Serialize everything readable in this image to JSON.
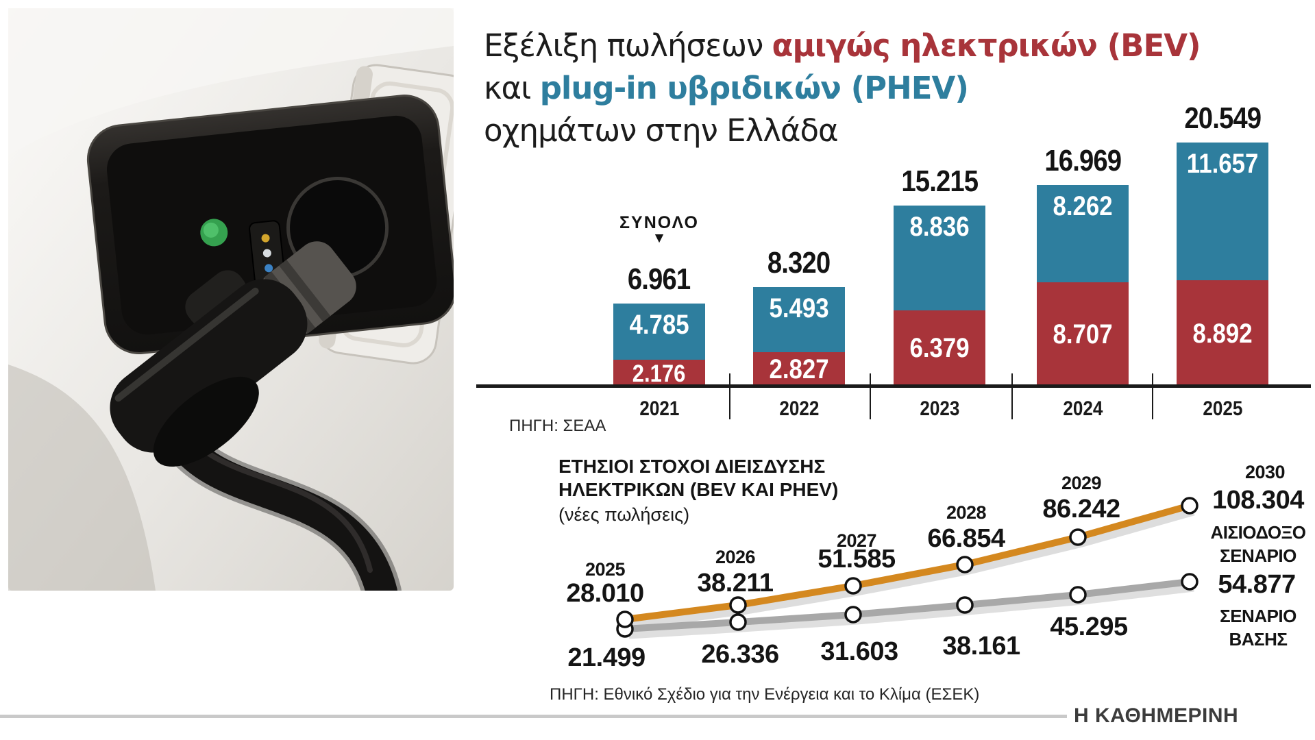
{
  "title": {
    "part1": "Εξέλιξη πωλήσεων ",
    "bev": "αμιγώς ηλεκτρικών (BEV)",
    "part2": "και ",
    "phev": "plug-in υβριδικών (PHEV)",
    "part3": "οχημάτων στην Ελλάδα"
  },
  "colors": {
    "bev": "#a8343a",
    "phev": "#2e7e9e",
    "optimistic": "#d4881f",
    "base": "#a8a8a8",
    "axis": "#1a1a1a",
    "led": "#3fae5a"
  },
  "footer": {
    "brand": "Η ΚΑΘΗΜΕΡΙΝΗ"
  },
  "chart_data": [
    {
      "type": "bar",
      "stacked": true,
      "title": "Εξέλιξη πωλήσεων αμιγώς ηλεκτρικών (BEV) και plug-in υβριδικών (PHEV) οχημάτων στην Ελλάδα",
      "categories": [
        "2021",
        "2022",
        "2023",
        "2024",
        "2025"
      ],
      "series": [
        {
          "name": "BEV",
          "color": "#a8343a",
          "values": [
            2176,
            2827,
            6379,
            8707,
            8892
          ],
          "labels": [
            "2.176",
            "2.827",
            "6.379",
            "8.707",
            "8.892"
          ]
        },
        {
          "name": "PHEV",
          "color": "#2e7e9e",
          "values": [
            4785,
            5493,
            8836,
            8262,
            11657
          ],
          "labels": [
            "4.785",
            "5.493",
            "8.836",
            "8.262",
            "11.657"
          ]
        }
      ],
      "totals": [
        6961,
        8320,
        15215,
        16969,
        20549
      ],
      "total_labels": [
        "6.961",
        "8.320",
        "15.215",
        "16.969",
        "20.549"
      ],
      "total_annotation": "ΣΥΝΟΛΟ",
      "total_annotation_arrow": "▼",
      "grid": false,
      "source": "ΠΗΓΗ: ΣΕΑΑ"
    },
    {
      "type": "line",
      "title": "ΕΤΗΣΙΟΙ ΣΤΟΧΟΙ ΔΙΕΙΣΔΥΣΗΣ",
      "title_line2": "ΗΛΕΚΤΡΙΚΩΝ (BEV ΚΑΙ PHEV)",
      "subtitle": "(νέες πωλήσεις)",
      "categories": [
        "2025",
        "2026",
        "2027",
        "2028",
        "2029",
        "2030"
      ],
      "series": [
        {
          "name": "ΑΙΣΙΟΔΟΞΟ ΣΕΝΑΡΙΟ",
          "color": "#d4881f",
          "values": [
            28010,
            38211,
            51585,
            66854,
            86242,
            108304
          ],
          "labels": [
            "28.010",
            "38.211",
            "51.585",
            "66.854",
            "86.242",
            "108.304"
          ]
        },
        {
          "name": "ΣΕΝΑΡΙΟ ΒΑΣΗΣ",
          "color": "#a8a8a8",
          "values": [
            21499,
            26336,
            31603,
            38161,
            45295,
            54877
          ],
          "labels": [
            "21.499",
            "26.336",
            "31.603",
            "38.161",
            "45.295",
            "54.877"
          ]
        }
      ],
      "grid": false,
      "legend_position": "right",
      "source": "ΠΗΓΗ: Εθνικό Σχέδιο για την Ενέργεια και το Κλίμα (ΕΣΕΚ)"
    }
  ]
}
